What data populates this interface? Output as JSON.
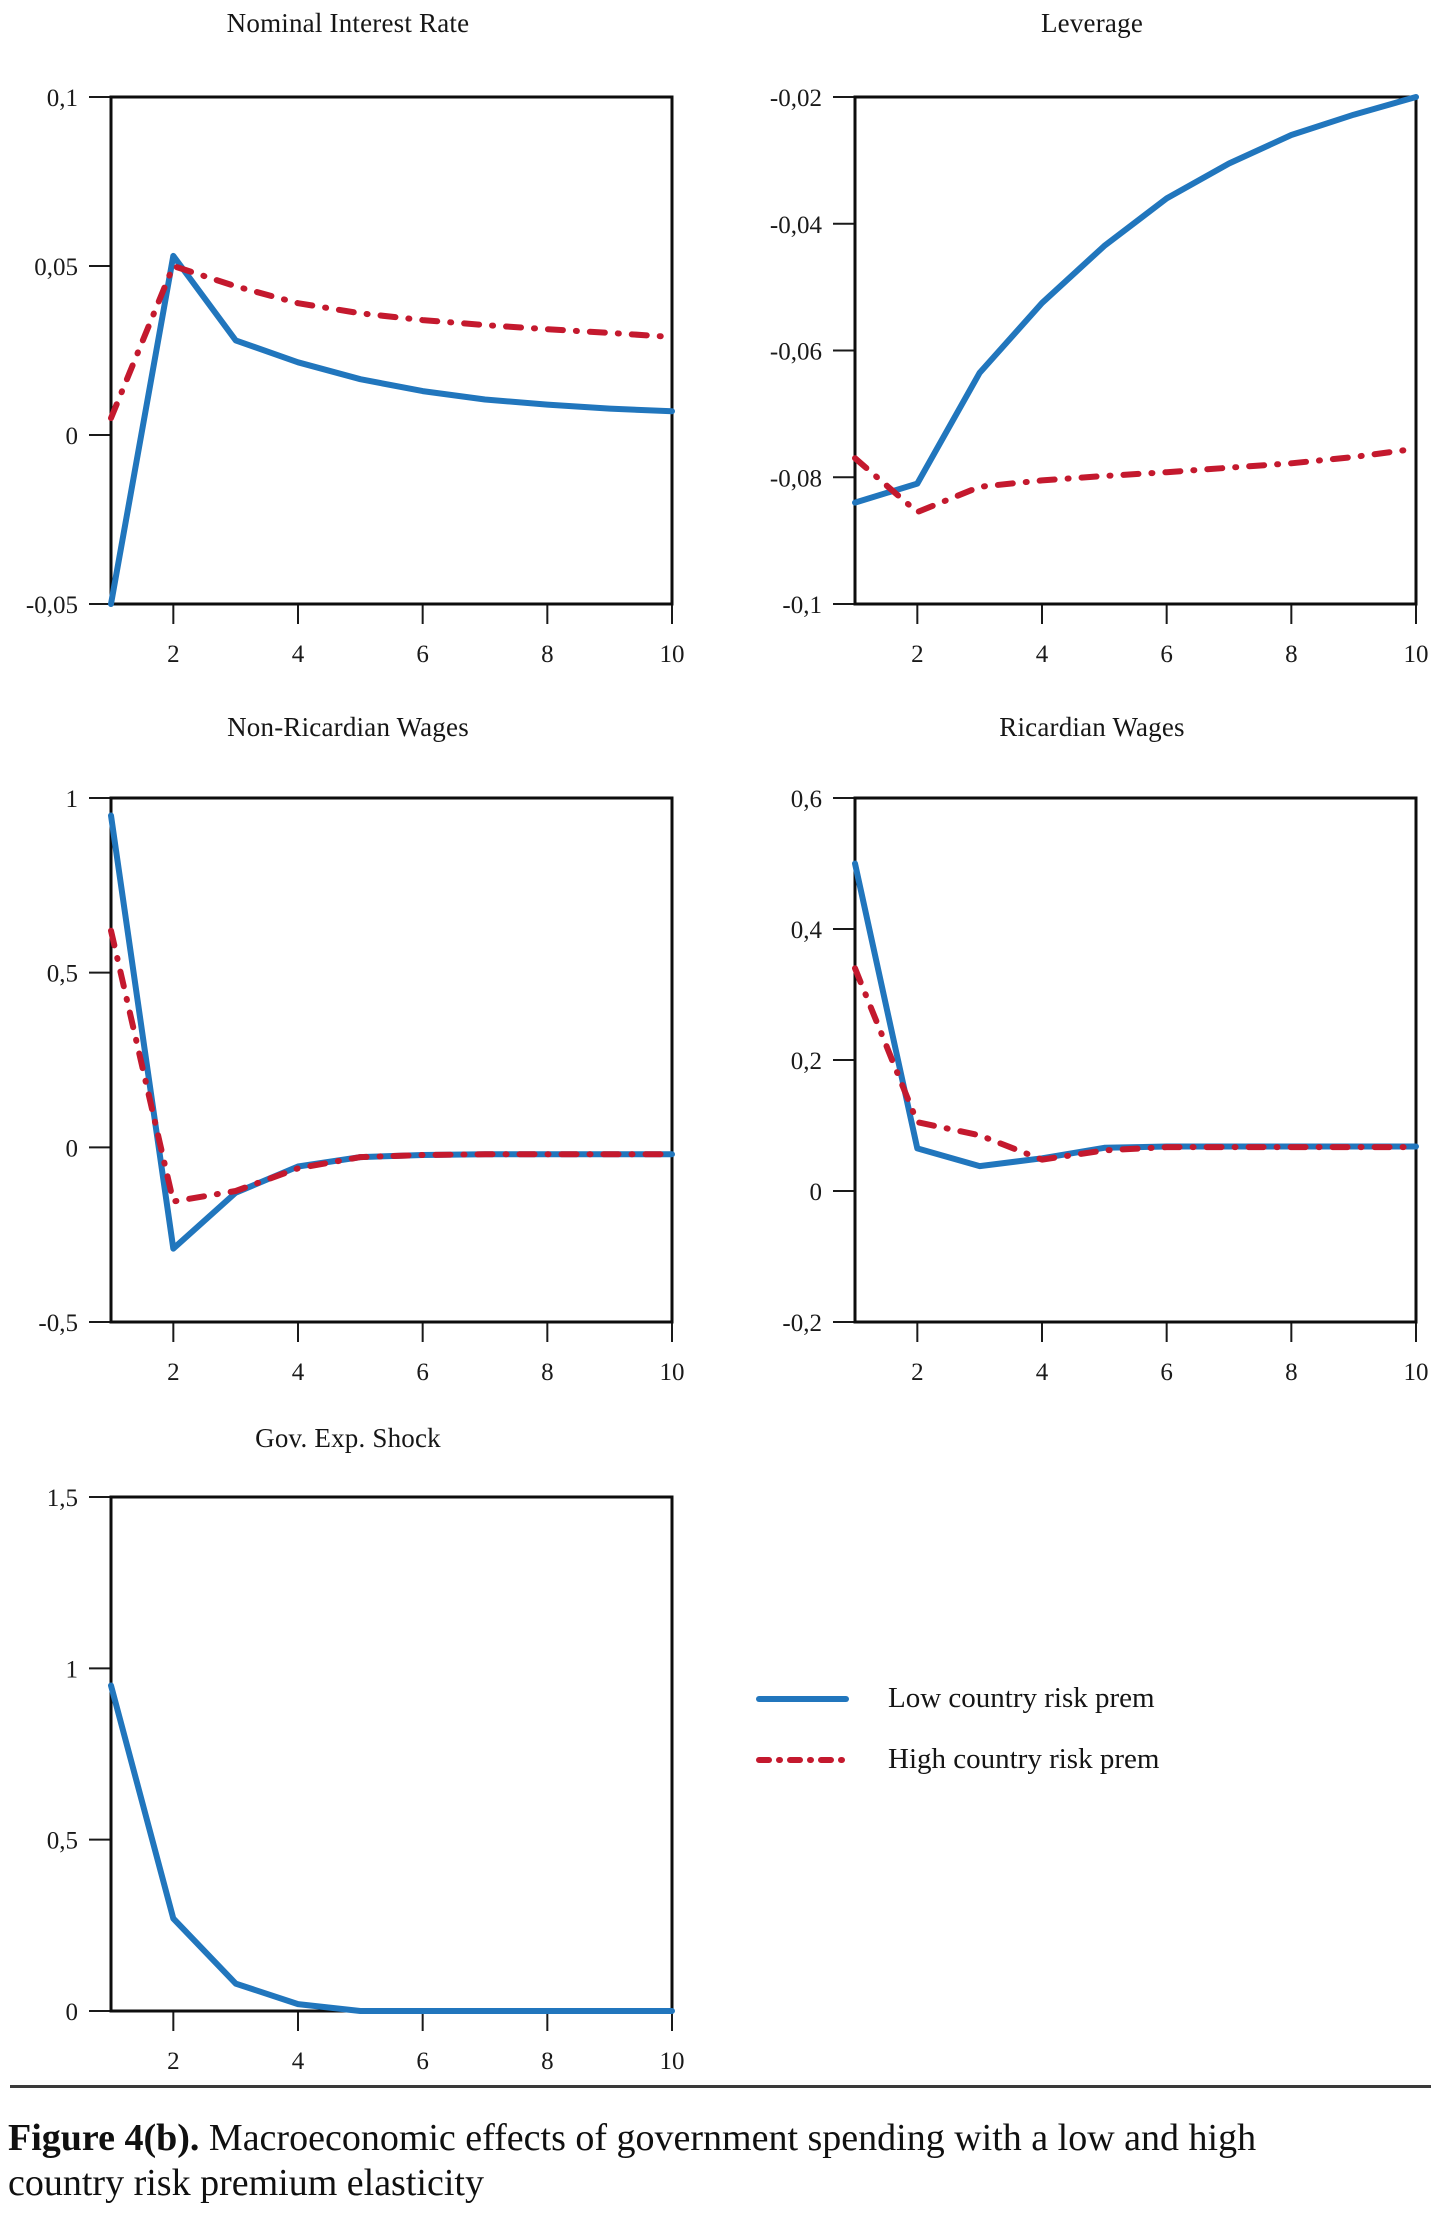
{
  "figure": {
    "caption_bold": "Figure 4(b).",
    "caption_line1": "Macroeconomic effects of government spending with a low and high",
    "caption_line2": "country risk premium elasticity"
  },
  "colors": {
    "low": "#2176BD",
    "high": "#C4192E",
    "frame": "#0d0d0d",
    "tick": "#1a1a1a",
    "rule": "#3a3a3a"
  },
  "legend": {
    "position": "bottom-right",
    "items": [
      {
        "key": "low",
        "label": "Low country risk prem",
        "style": "solid",
        "color": "#2176BD"
      },
      {
        "key": "high",
        "label": "High country risk prem",
        "style": "dash-dot",
        "color": "#C4192E"
      }
    ]
  },
  "chart_data": [
    {
      "type": "line",
      "title": "Nominal Interest Rate",
      "x": [
        1,
        2,
        3,
        4,
        5,
        6,
        7,
        8,
        9,
        10
      ],
      "xlim": [
        1,
        10
      ],
      "xticks": [
        {
          "v": 2,
          "label": "2"
        },
        {
          "v": 4,
          "label": "4"
        },
        {
          "v": 6,
          "label": "6"
        },
        {
          "v": 8,
          "label": "8"
        },
        {
          "v": 10,
          "label": "10"
        }
      ],
      "ylim": [
        -0.05,
        0.1
      ],
      "yticks": [
        {
          "v": 0.1,
          "label": "0,1"
        },
        {
          "v": 0.05,
          "label": "0,05"
        },
        {
          "v": 0,
          "label": "0"
        },
        {
          "v": -0.05,
          "label": "-0,05"
        }
      ],
      "grid": false,
      "series": [
        {
          "name": "Low country risk prem",
          "key": "low",
          "style": "solid",
          "values": [
            -0.05,
            0.053,
            0.028,
            0.0215,
            0.0165,
            0.013,
            0.0105,
            0.009,
            0.0078,
            0.007
          ]
        },
        {
          "name": "High country risk prem",
          "key": "high",
          "style": "dash-dot",
          "values": [
            0.005,
            0.05,
            0.044,
            0.039,
            0.036,
            0.034,
            0.0325,
            0.0313,
            0.0302,
            0.029
          ]
        }
      ]
    },
    {
      "type": "line",
      "title": "Leverage",
      "x": [
        1,
        2,
        3,
        4,
        5,
        6,
        7,
        8,
        9,
        10
      ],
      "xlim": [
        1,
        10
      ],
      "xticks": [
        {
          "v": 2,
          "label": "2"
        },
        {
          "v": 4,
          "label": "4"
        },
        {
          "v": 6,
          "label": "6"
        },
        {
          "v": 8,
          "label": "8"
        },
        {
          "v": 10,
          "label": "10"
        }
      ],
      "ylim": [
        -0.1,
        -0.02
      ],
      "yticks": [
        {
          "v": -0.02,
          "label": "-0,02"
        },
        {
          "v": -0.04,
          "label": "-0,04"
        },
        {
          "v": -0.06,
          "label": "-0,06"
        },
        {
          "v": -0.08,
          "label": "-0,08"
        },
        {
          "v": -0.1,
          "label": "-0,1"
        }
      ],
      "grid": false,
      "series": [
        {
          "name": "Low country risk prem",
          "key": "low",
          "style": "solid",
          "values": [
            -0.084,
            -0.081,
            -0.0635,
            -0.0525,
            -0.0435,
            -0.036,
            -0.0305,
            -0.026,
            -0.0228,
            -0.02
          ]
        },
        {
          "name": "High country risk prem",
          "key": "high",
          "style": "dash-dot",
          "values": [
            -0.077,
            -0.0855,
            -0.0815,
            -0.0805,
            -0.0798,
            -0.0792,
            -0.0785,
            -0.0778,
            -0.0768,
            -0.0755
          ]
        }
      ]
    },
    {
      "type": "line",
      "title": "Non-Ricardian Wages",
      "x": [
        1,
        2,
        3,
        4,
        5,
        6,
        7,
        8,
        9,
        10
      ],
      "xlim": [
        1,
        10
      ],
      "xticks": [
        {
          "v": 2,
          "label": "2"
        },
        {
          "v": 4,
          "label": "4"
        },
        {
          "v": 6,
          "label": "6"
        },
        {
          "v": 8,
          "label": "8"
        },
        {
          "v": 10,
          "label": "10"
        }
      ],
      "ylim": [
        -0.5,
        1
      ],
      "yticks": [
        {
          "v": 1,
          "label": "1"
        },
        {
          "v": 0.5,
          "label": "0,5"
        },
        {
          "v": 0,
          "label": "0"
        },
        {
          "v": -0.5,
          "label": "-0,5"
        }
      ],
      "grid": false,
      "series": [
        {
          "name": "Low country risk prem",
          "key": "low",
          "style": "solid",
          "values": [
            0.95,
            -0.29,
            -0.13,
            -0.055,
            -0.028,
            -0.022,
            -0.02,
            -0.02,
            -0.02,
            -0.02
          ]
        },
        {
          "name": "High country risk prem",
          "key": "high",
          "style": "dash-dot",
          "values": [
            0.62,
            -0.155,
            -0.125,
            -0.06,
            -0.028,
            -0.022,
            -0.02,
            -0.02,
            -0.02,
            -0.02
          ]
        }
      ]
    },
    {
      "type": "line",
      "title": "Ricardian Wages",
      "x": [
        1,
        2,
        3,
        4,
        5,
        6,
        7,
        8,
        9,
        10
      ],
      "xlim": [
        1,
        10
      ],
      "xticks": [
        {
          "v": 2,
          "label": "2"
        },
        {
          "v": 4,
          "label": "4"
        },
        {
          "v": 6,
          "label": "6"
        },
        {
          "v": 8,
          "label": "8"
        },
        {
          "v": 10,
          "label": "10"
        }
      ],
      "ylim": [
        -0.2,
        0.6
      ],
      "yticks": [
        {
          "v": 0.6,
          "label": "0,6"
        },
        {
          "v": 0.4,
          "label": "0,4"
        },
        {
          "v": 0.2,
          "label": "0,2"
        },
        {
          "v": 0,
          "label": "0"
        },
        {
          "v": -0.2,
          "label": "-0,2"
        }
      ],
      "grid": false,
      "series": [
        {
          "name": "Low country risk prem",
          "key": "low",
          "style": "solid",
          "values": [
            0.5,
            0.065,
            0.038,
            0.05,
            0.066,
            0.068,
            0.068,
            0.068,
            0.068,
            0.068
          ]
        },
        {
          "name": "High country risk prem",
          "key": "high",
          "style": "dash-dot",
          "values": [
            0.34,
            0.105,
            0.085,
            0.048,
            0.062,
            0.067,
            0.067,
            0.067,
            0.067,
            0.067
          ]
        }
      ]
    },
    {
      "type": "line",
      "title": "Gov. Exp. Shock",
      "x": [
        1,
        2,
        3,
        4,
        5,
        6,
        7,
        8,
        9,
        10
      ],
      "xlim": [
        1,
        10
      ],
      "xticks": [
        {
          "v": 2,
          "label": "2"
        },
        {
          "v": 4,
          "label": "4"
        },
        {
          "v": 6,
          "label": "6"
        },
        {
          "v": 8,
          "label": "8"
        },
        {
          "v": 10,
          "label": "10"
        }
      ],
      "ylim": [
        0,
        1.5
      ],
      "yticks": [
        {
          "v": 1.5,
          "label": "1,5"
        },
        {
          "v": 1,
          "label": "1"
        },
        {
          "v": 0.5,
          "label": "0,5"
        },
        {
          "v": 0,
          "label": "0"
        }
      ],
      "grid": false,
      "series": [
        {
          "name": "Low country risk prem",
          "key": "low",
          "style": "solid",
          "values": [
            0.95,
            0.27,
            0.08,
            0.02,
            0,
            0,
            0,
            0,
            0,
            0
          ]
        }
      ]
    }
  ]
}
